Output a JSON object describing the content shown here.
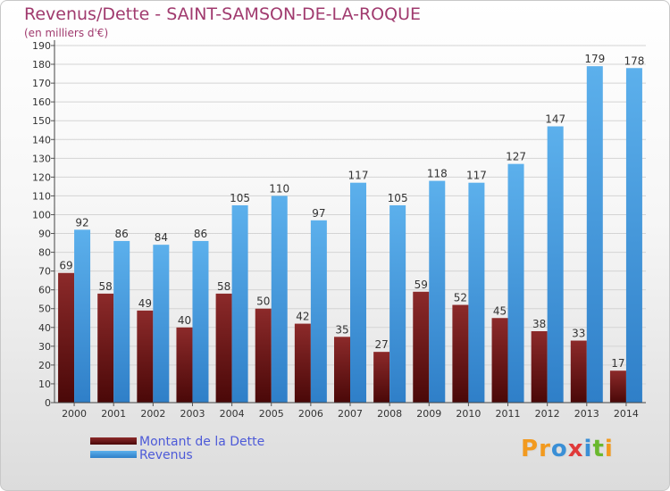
{
  "header": {
    "title": "Revenus/Dette - SAINT-SAMSON-DE-LA-ROQUE",
    "subtitle": "(en milliers d'€)"
  },
  "legend": {
    "items": [
      {
        "label": "Montant de la Dette",
        "color": "#7a1f1f"
      },
      {
        "label": "Revenus",
        "color": "#4fa6e6"
      }
    ]
  },
  "logo": {
    "text": "Proxiti",
    "letters": [
      {
        "ch": "P",
        "color": "#f29a1f"
      },
      {
        "ch": "r",
        "color": "#f29a1f"
      },
      {
        "ch": "o",
        "color": "#3a8fd6"
      },
      {
        "ch": "x",
        "color": "#e03a3a"
      },
      {
        "ch": "i",
        "color": "#3a8fd6"
      },
      {
        "ch": "t",
        "color": "#6ab82e"
      },
      {
        "ch": "i",
        "color": "#f29a1f"
      }
    ]
  },
  "chart_data": {
    "type": "bar",
    "title": "Revenus/Dette - SAINT-SAMSON-DE-LA-ROQUE",
    "subtitle": "(en milliers d'€)",
    "categories": [
      "2000",
      "2001",
      "2002",
      "2003",
      "2004",
      "2005",
      "2006",
      "2007",
      "2008",
      "2009",
      "2010",
      "2011",
      "2012",
      "2013",
      "2014"
    ],
    "series": [
      {
        "name": "Montant de la Dette",
        "color": "#7a1f1f",
        "values": [
          69,
          58,
          49,
          40,
          58,
          50,
          42,
          35,
          27,
          59,
          52,
          45,
          38,
          33,
          17
        ]
      },
      {
        "name": "Revenus",
        "color": "#4fa6e6",
        "values": [
          92,
          86,
          84,
          86,
          105,
          110,
          97,
          117,
          105,
          118,
          117,
          127,
          147,
          179,
          178
        ]
      }
    ],
    "ylim": [
      0,
      190
    ],
    "yticks": [
      0,
      10,
      20,
      30,
      40,
      50,
      60,
      70,
      80,
      90,
      100,
      110,
      120,
      130,
      140,
      150,
      160,
      170,
      180,
      190
    ],
    "grid": true,
    "legend_position": "bottom-left"
  }
}
